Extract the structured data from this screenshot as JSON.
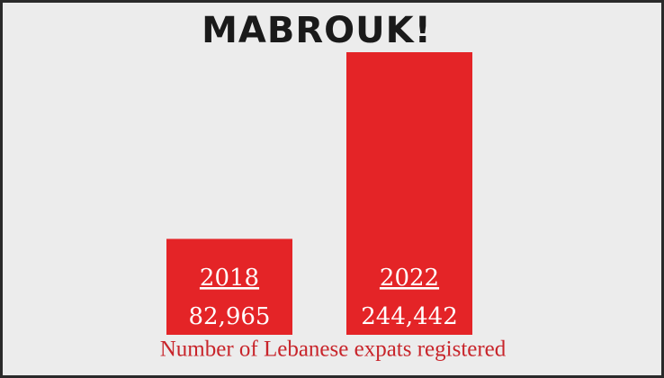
{
  "chart_data": {
    "type": "bar",
    "title": "MABROUK!",
    "categories": [
      "2018",
      "2022"
    ],
    "values": [
      82965,
      244442
    ],
    "value_labels": [
      "82,965",
      "244,442"
    ],
    "color": "#e42427",
    "x_label": "Number of Lebanese expats registered"
  }
}
